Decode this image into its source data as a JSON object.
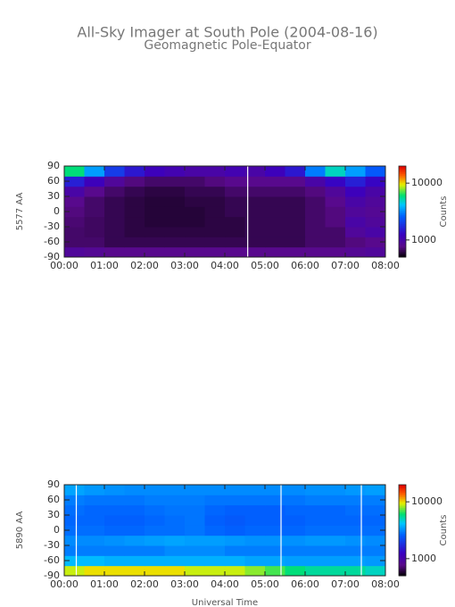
{
  "chart_data": [
    {
      "type": "heatmap",
      "title": "All-Sky Imager at South Pole (2004-08-16)",
      "subtitle": "Geomagnetic Pole-Equator",
      "ylabel": "5577 AA",
      "colorbar_label": "Counts",
      "xlim": [
        0,
        8
      ],
      "xticks": [
        {
          "value": 0,
          "label": "00:00"
        },
        {
          "value": 1,
          "label": "01:00"
        },
        {
          "value": 2,
          "label": "02:00"
        },
        {
          "value": 3,
          "label": "03:00"
        },
        {
          "value": 4,
          "label": "04:00"
        },
        {
          "value": 5,
          "label": "05:00"
        },
        {
          "value": 6,
          "label": "06:00"
        },
        {
          "value": 7,
          "label": "07:00"
        },
        {
          "value": 8,
          "label": "08:00"
        }
      ],
      "ylim": [
        -90,
        90
      ],
      "yticks": [
        -90,
        -60,
        -30,
        0,
        30,
        60,
        90
      ],
      "zlim": [
        500,
        20000
      ],
      "zticks": [
        1000,
        10000
      ],
      "zlog": true,
      "x": [
        0.25,
        0.75,
        1.25,
        1.75,
        2.25,
        2.75,
        3.25,
        3.75,
        4.25,
        4.75,
        5.25,
        5.75,
        6.25,
        6.75,
        7.25,
        7.75
      ],
      "y": [
        -80,
        -60,
        -40,
        -20,
        0,
        20,
        40,
        60,
        80
      ],
      "z": [
        [
          900,
          850,
          800,
          800,
          800,
          800,
          800,
          800,
          800,
          800,
          800,
          800,
          800,
          800,
          850,
          900
        ],
        [
          700,
          700,
          650,
          650,
          650,
          650,
          650,
          650,
          650,
          650,
          650,
          650,
          700,
          700,
          750,
          800
        ],
        [
          700,
          680,
          650,
          620,
          620,
          620,
          620,
          620,
          620,
          650,
          650,
          650,
          700,
          700,
          900,
          1000
        ],
        [
          720,
          680,
          650,
          620,
          600,
          600,
          600,
          620,
          620,
          650,
          650,
          650,
          700,
          750,
          1000,
          900
        ],
        [
          750,
          700,
          650,
          620,
          600,
          600,
          600,
          620,
          650,
          650,
          650,
          650,
          700,
          750,
          900,
          850
        ],
        [
          800,
          700,
          650,
          620,
          600,
          600,
          620,
          620,
          650,
          650,
          650,
          650,
          700,
          800,
          1000,
          900
        ],
        [
          1000,
          800,
          700,
          650,
          620,
          620,
          650,
          650,
          700,
          700,
          700,
          700,
          750,
          900,
          1200,
          1000
        ],
        [
          1600,
          1200,
          900,
          750,
          700,
          700,
          700,
          750,
          800,
          800,
          800,
          800,
          1000,
          1300,
          1600,
          1300
        ],
        [
          6000,
          3500,
          2000,
          1500,
          1200,
          1100,
          1000,
          1000,
          1100,
          1000,
          1200,
          1500,
          3000,
          5000,
          3500,
          2500
        ]
      ],
      "gaps": [
        4.57
      ]
    },
    {
      "type": "heatmap",
      "ylabel": "5890 AA",
      "colorbar_label": "Counts",
      "xlabel": "Universal Time",
      "xlim": [
        0,
        8
      ],
      "xticks": [
        {
          "value": 0,
          "label": "00:00"
        },
        {
          "value": 1,
          "label": "01:00"
        },
        {
          "value": 2,
          "label": "02:00"
        },
        {
          "value": 3,
          "label": "03:00"
        },
        {
          "value": 4,
          "label": "04:00"
        },
        {
          "value": 5,
          "label": "05:00"
        },
        {
          "value": 6,
          "label": "06:00"
        },
        {
          "value": 7,
          "label": "07:00"
        },
        {
          "value": 8,
          "label": "08:00"
        }
      ],
      "ylim": [
        -90,
        90
      ],
      "yticks": [
        -90,
        -60,
        -30,
        0,
        30,
        60,
        90
      ],
      "zlim": [
        500,
        20000
      ],
      "zticks": [
        1000,
        10000
      ],
      "zlog": true,
      "x": [
        0.25,
        0.75,
        1.25,
        1.75,
        2.25,
        2.75,
        3.25,
        3.75,
        4.25,
        4.75,
        5.25,
        5.75,
        6.25,
        6.75,
        7.25,
        7.75
      ],
      "y": [
        -80,
        -60,
        -40,
        -20,
        0,
        20,
        40,
        60,
        80
      ],
      "z": [
        [
          9000,
          10000,
          10000,
          10000,
          10000,
          10000,
          9000,
          9000,
          9000,
          8000,
          7000,
          6000,
          5500,
          5500,
          5500,
          5000
        ],
        [
          4000,
          4000,
          3800,
          3800,
          3800,
          3800,
          3800,
          3800,
          3800,
          3600,
          3600,
          3500,
          3500,
          3500,
          3500,
          3400
        ],
        [
          3000,
          3000,
          3000,
          3000,
          3000,
          3200,
          3200,
          3200,
          3000,
          3000,
          3000,
          3000,
          3000,
          3000,
          3000,
          3000
        ],
        [
          3200,
          3200,
          3300,
          3400,
          3500,
          3600,
          3500,
          3500,
          3400,
          3300,
          3300,
          3300,
          3400,
          3400,
          3300,
          3200
        ],
        [
          2800,
          2800,
          2700,
          2700,
          2800,
          2800,
          2900,
          2700,
          2600,
          2700,
          2700,
          2700,
          2800,
          2800,
          2800,
          2800
        ],
        [
          2700,
          2700,
          2600,
          2600,
          2700,
          2800,
          2900,
          2600,
          2500,
          2600,
          2600,
          2600,
          2700,
          2700,
          2700,
          2700
        ],
        [
          2800,
          2700,
          2700,
          2700,
          2800,
          2900,
          2900,
          2700,
          2600,
          2600,
          2600,
          2700,
          2700,
          2700,
          2800,
          2800
        ],
        [
          3000,
          2900,
          2900,
          2900,
          3000,
          3000,
          3000,
          2900,
          2900,
          2900,
          2900,
          2900,
          3000,
          3000,
          3000,
          3000
        ],
        [
          3600,
          3400,
          3300,
          3200,
          3200,
          3200,
          3200,
          3200,
          3200,
          3200,
          3200,
          3200,
          3300,
          3300,
          3400,
          3500
        ]
      ],
      "gaps": [
        0.3,
        5.4,
        7.4
      ]
    }
  ]
}
